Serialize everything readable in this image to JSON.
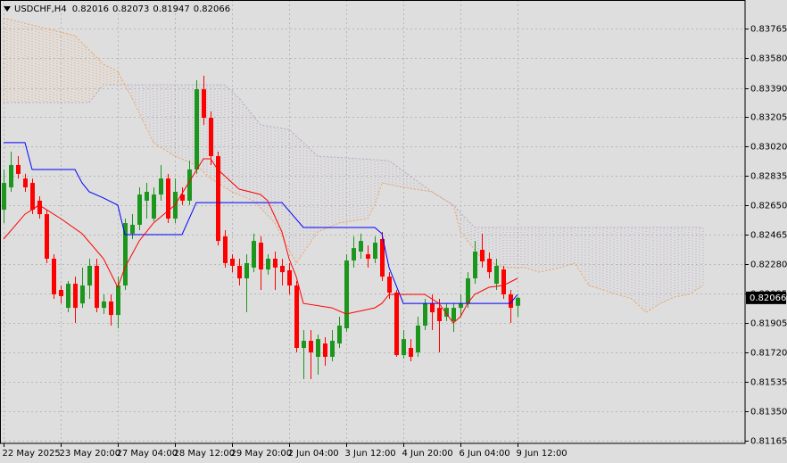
{
  "chart_data": {
    "type": "candlestick",
    "symbol": "USDCHF,H4",
    "xlim": [
      -0.5,
      103.875
    ],
    "xticks": [
      {
        "value": 0,
        "label": "22 May 2025"
      },
      {
        "value": 8,
        "label": "23 May 20:00"
      },
      {
        "value": 16,
        "label": "27 May 04:00"
      },
      {
        "value": 24,
        "label": "28 May 12:00"
      },
      {
        "value": 32,
        "label": "29 May 20:00"
      },
      {
        "value": 40,
        "label": "2 Jun 04:00"
      },
      {
        "value": 48,
        "label": "3 Jun 12:00"
      },
      {
        "value": 56,
        "label": "4 Jun 20:00"
      },
      {
        "value": 64,
        "label": "6 Jun 04:00"
      },
      {
        "value": 72,
        "label": "9 Jun 12:00"
      }
    ],
    "ylim": [
      0.81148,
      0.83945
    ],
    "yticks": [
      0.83765,
      {
        "value": 0.8358,
        "label": "0.83580"
      },
      {
        "value": 0.8339,
        "label": "0.83390"
      },
      0.83205,
      {
        "value": 0.8302,
        "label": "0.83020"
      },
      0.82835,
      {
        "value": 0.8265,
        "label": "0.82650"
      },
      0.82465,
      {
        "value": 0.8228,
        "label": "0.82280"
      },
      0.82095,
      0.81905,
      {
        "value": 0.8172,
        "label": "0.81720"
      },
      0.81535,
      {
        "value": 0.8135,
        "label": "0.81350"
      },
      0.81165
    ],
    "grid": true,
    "up_color": "#1c961c",
    "down_color": "#ff0000",
    "candles": {
      "open": [
        0.82622,
        0.82763,
        0.82904,
        0.82819,
        0.82791,
        0.82679,
        0.82594,
        0.82313,
        0.82116,
        0.82003,
        0.82155,
        0.82031,
        0.82144,
        0.82268,
        0.82003,
        0.82043,
        0.81958,
        0.82144,
        0.82471,
        0.82527,
        0.82679,
        0.82566,
        0.82718,
        0.82819,
        0.82566,
        0.82718,
        0.82679,
        0.82876,
        0.83382,
        0.83202,
        0.8296,
        0.82454,
        0.82313,
        0.82268,
        0.82189,
        0.82257,
        0.82414,
        0.82245,
        0.82313,
        0.82268,
        0.8224,
        0.82144,
        0.8175,
        0.81795,
        0.81694,
        0.81778,
        0.81694,
        0.81778,
        0.81874,
        0.82302,
        0.82358,
        0.82341,
        0.82313,
        0.82437,
        0.822,
        0.82099,
        0.81705,
        0.8175,
        0.81722,
        0.81891,
        0.82031,
        0.82003,
        0.81947,
        0.81919,
        0.82003,
        0.82031,
        0.82189,
        0.82369,
        0.82313,
        0.82155,
        0.82245,
        0.82088,
        0.82016
      ],
      "high": [
        0.82876,
        0.82988,
        0.8296,
        0.82848,
        0.82819,
        0.82707,
        0.82622,
        0.82341,
        0.82144,
        0.82172,
        0.822,
        0.82257,
        0.82313,
        0.82313,
        0.82088,
        0.82088,
        0.822,
        0.82566,
        0.82594,
        0.82763,
        0.82791,
        0.82763,
        0.82904,
        0.82848,
        0.82819,
        0.82763,
        0.82932,
        0.83439,
        0.83467,
        0.83242,
        0.82988,
        0.82493,
        0.82341,
        0.82313,
        0.82341,
        0.82471,
        0.82454,
        0.82341,
        0.82358,
        0.82313,
        0.82285,
        0.82172,
        0.81863,
        0.81863,
        0.81834,
        0.81818,
        0.81863,
        0.81947,
        0.82341,
        0.82454,
        0.82471,
        0.82397,
        0.82454,
        0.82482,
        0.82228,
        0.82116,
        0.81863,
        0.81806,
        0.81947,
        0.8206,
        0.82088,
        0.8206,
        0.82031,
        0.82031,
        0.82088,
        0.82228,
        0.82425,
        0.82471,
        0.82352,
        0.82313,
        0.82268,
        0.82116,
        0.82073
      ],
      "low": [
        0.82538,
        0.82735,
        0.82819,
        0.82735,
        0.82594,
        0.82566,
        0.82285,
        0.8206,
        0.82031,
        0.81975,
        0.81908,
        0.82003,
        0.8206,
        0.81975,
        0.81964,
        0.81891,
        0.81874,
        0.82116,
        0.82437,
        0.82493,
        0.82566,
        0.82549,
        0.82679,
        0.82538,
        0.82538,
        0.82651,
        0.82651,
        0.82848,
        0.83157,
        0.82904,
        0.82397,
        0.82257,
        0.82228,
        0.82144,
        0.81975,
        0.82228,
        0.82116,
        0.82212,
        0.82116,
        0.82144,
        0.82088,
        0.81722,
        0.81553,
        0.81553,
        0.81581,
        0.81638,
        0.81666,
        0.8175,
        0.81851,
        0.82257,
        0.82313,
        0.82257,
        0.82285,
        0.82172,
        0.8206,
        0.81694,
        0.81683,
        0.81666,
        0.81694,
        0.81863,
        0.81863,
        0.81722,
        0.81919,
        0.81851,
        0.81947,
        0.82003,
        0.82155,
        0.82257,
        0.82189,
        0.82116,
        0.8206,
        0.81908,
        0.81947
      ],
      "close": [
        0.82791,
        0.82904,
        0.82848,
        0.82763,
        0.82622,
        0.82594,
        0.82313,
        0.82088,
        0.82077,
        0.82155,
        0.82003,
        0.82144,
        0.82268,
        0.82003,
        0.82043,
        0.81958,
        0.82144,
        0.82538,
        0.82527,
        0.82718,
        0.82735,
        0.82718,
        0.82819,
        0.82566,
        0.82735,
        0.82679,
        0.82876,
        0.83382,
        0.83202,
        0.8296,
        0.82425,
        0.82285,
        0.82268,
        0.82189,
        0.82285,
        0.82425,
        0.82245,
        0.82313,
        0.82257,
        0.82228,
        0.82144,
        0.8175,
        0.81795,
        0.81722,
        0.81806,
        0.81694,
        0.81795,
        0.81891,
        0.82302,
        0.8238,
        0.82425,
        0.82313,
        0.82414,
        0.822,
        0.82099,
        0.81705,
        0.81806,
        0.81694,
        0.81891,
        0.82031,
        0.81975,
        0.81919,
        0.82003,
        0.82003,
        0.82031,
        0.82189,
        0.82358,
        0.82296,
        0.82228,
        0.82268,
        0.82088,
        0.82003,
        0.82066
      ]
    },
    "lines": [
      {
        "color": "#0000ff",
        "x": [
          0,
          3,
          4,
          10,
          11,
          12,
          14,
          16,
          17,
          25,
          27,
          39,
          42,
          52,
          53,
          54,
          56,
          71,
          72
        ],
        "values": [
          0.83045,
          0.83045,
          0.82876,
          0.82876,
          0.82791,
          0.82735,
          0.82696,
          0.82651,
          0.82465,
          0.82465,
          0.82667,
          0.82667,
          0.8251,
          0.8251,
          0.82471,
          0.82257,
          0.82031,
          0.82031,
          0.82088
        ]
      },
      {
        "color": "#ff0000",
        "x": [
          0,
          3,
          5,
          8,
          11,
          14,
          16,
          17,
          19,
          21,
          24,
          28,
          29,
          30,
          33,
          36,
          37,
          39,
          40,
          41,
          42,
          46,
          48,
          52,
          53,
          54,
          59,
          61,
          63,
          64,
          65,
          66,
          68,
          70,
          72
        ],
        "values": [
          0.82437,
          0.82594,
          0.82651,
          0.82566,
          0.82471,
          0.82313,
          0.82133,
          0.82257,
          0.82425,
          0.82538,
          0.82651,
          0.82943,
          0.82943,
          0.82876,
          0.82752,
          0.82718,
          0.82679,
          0.82482,
          0.82313,
          0.822,
          0.82031,
          0.82003,
          0.81964,
          0.82003,
          0.82031,
          0.82088,
          0.82088,
          0.82031,
          0.81908,
          0.81947,
          0.82031,
          0.82088,
          0.82133,
          0.82144,
          0.82189
        ]
      }
    ],
    "cloud": {
      "up_color": "#f4a460",
      "down_color": "#b9a9c6",
      "span_a": {
        "x": [
          0,
          10,
          14,
          16,
          18,
          21,
          24,
          27,
          29,
          32,
          35,
          38,
          41,
          44,
          47,
          51,
          52,
          53,
          56,
          60,
          63,
          64,
          67,
          70,
          73,
          75,
          78,
          80,
          82,
          86,
          88,
          90,
          92,
          94,
          96,
          98
        ],
        "values": [
          0.83832,
          0.8372,
          0.8354,
          0.83495,
          0.83326,
          0.83045,
          0.8296,
          0.82904,
          0.82819,
          0.82735,
          0.82679,
          0.82538,
          0.82285,
          0.82482,
          0.82538,
          0.82566,
          0.82651,
          0.82791,
          0.82763,
          0.82735,
          0.82651,
          0.82482,
          0.82313,
          0.82257,
          0.82257,
          0.82228,
          0.82257,
          0.82285,
          0.82144,
          0.82088,
          0.8206,
          0.81975,
          0.82031,
          0.82071,
          0.82088,
          0.82144
        ]
      },
      "span_b": {
        "x": [
          0,
          12,
          14,
          31,
          33,
          36,
          40,
          44,
          54,
          60,
          63,
          66,
          98
        ],
        "values": [
          0.83298,
          0.83298,
          0.8341,
          0.8341,
          0.83326,
          0.83157,
          0.83129,
          0.8296,
          0.82932,
          0.82735,
          0.82651,
          0.8251,
          0.8251
        ]
      }
    }
  }
}
